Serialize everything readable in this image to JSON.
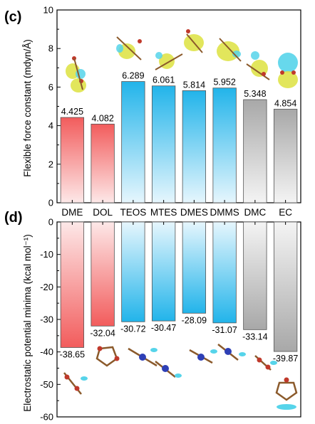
{
  "chart_data": [
    {
      "type": "bar",
      "panel_label": "(c)",
      "ylabel": "Flexible force constant (mdyn/Å)",
      "ylim": [
        0,
        10
      ],
      "yticks": [
        "0",
        "2",
        "4",
        "6",
        "8",
        "10"
      ],
      "categories": [
        "DME",
        "DOL",
        "TEOS",
        "MTES",
        "DMES",
        "DMMS",
        "DMC",
        "EC"
      ],
      "values": [
        4.425,
        4.082,
        6.289,
        6.061,
        5.814,
        5.952,
        5.348,
        4.854
      ],
      "value_labels": [
        "4.425",
        "4.082",
        "6.289",
        "6.061",
        "5.814",
        "5.952",
        "5.348",
        "4.854"
      ],
      "colors": {
        "ether": "#f25c5c",
        "silane": "#22b4ea",
        "carbonate": "#aaaaaa"
      },
      "groups": [
        "ether",
        "ether",
        "silane",
        "silane",
        "silane",
        "silane",
        "carbonate",
        "carbonate"
      ]
    },
    {
      "type": "bar",
      "panel_label": "(d)",
      "ylabel": "Electrostatic potential minima (kcal mol⁻¹)",
      "ylim": [
        -60,
        0
      ],
      "yticks": [
        "0",
        "-10",
        "-20",
        "-30",
        "-40",
        "-50",
        "-60"
      ],
      "categories": [
        "DME",
        "DOL",
        "TEOS",
        "MTES",
        "DMES",
        "DMMS",
        "DMC",
        "EC"
      ],
      "values": [
        -38.65,
        -32.04,
        -30.72,
        -30.47,
        -28.09,
        -31.07,
        -33.14,
        -39.87
      ],
      "value_labels": [
        "-38.65",
        "-32.04",
        "-30.72",
        "-30.47",
        "-28.09",
        "-31.07",
        "-33.14",
        "-39.87"
      ],
      "colors": {
        "ether": "#f25c5c",
        "silane": "#22b4ea",
        "carbonate": "#aaaaaa"
      },
      "groups": [
        "ether",
        "ether",
        "silane",
        "silane",
        "silane",
        "silane",
        "carbonate",
        "carbonate"
      ]
    }
  ]
}
